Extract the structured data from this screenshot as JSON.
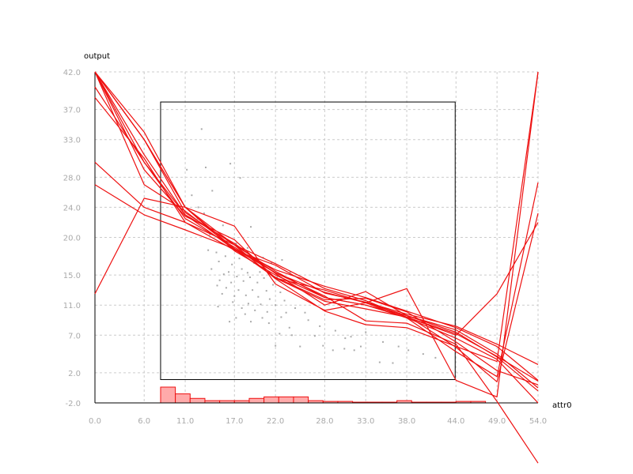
{
  "chart_data": {
    "type": "line",
    "xlabel": "attr0",
    "ylabel": "output",
    "xlim": [
      0,
      54
    ],
    "ylim": [
      -2,
      42
    ],
    "x_ticks": [
      "0.0",
      "6.0",
      "11.0",
      "17.0",
      "22.0",
      "28.0",
      "33.0",
      "38.0",
      "44.0",
      "49.0",
      "54.0"
    ],
    "y_ticks": [
      "-2.0",
      "2.0",
      "7.0",
      "11.0",
      "15.0",
      "20.0",
      "24.0",
      "28.0",
      "33.0",
      "37.0",
      "42.0"
    ],
    "grid": true,
    "colors": {
      "curves": "#ee1111",
      "histogram_fill": "#ffaaaa",
      "histogram_edge": "#ee1111",
      "points": "#aaaaaa",
      "box": "#000000",
      "grid": "#cccccc",
      "axis": "#000000"
    },
    "data_box": {
      "x": [
        8.0,
        43.9
      ],
      "y": [
        1.1,
        38.0
      ]
    },
    "histogram": {
      "bin_start": 8.0,
      "bin_width": 1.8,
      "heights": [
        2.1,
        1.2,
        0.6,
        0.3,
        0.3,
        0.3,
        0.6,
        0.8,
        0.8,
        0.8,
        0.3,
        0.2,
        0.2,
        0.1,
        0.1,
        0.1,
        0.3,
        0.1,
        0.1,
        0.1,
        0.2,
        0.2
      ]
    },
    "series": [
      {
        "x": [
          0,
          6,
          11,
          17,
          22,
          28,
          33,
          38,
          44,
          49,
          54
        ],
        "y": [
          12.5,
          25.2,
          24.0,
          18.2,
          15.0,
          12.0,
          11.0,
          9.6,
          7.4,
          4.1,
          -0.4
        ]
      },
      {
        "x": [
          0,
          6,
          11,
          17,
          22,
          28,
          33,
          38,
          44,
          49,
          54
        ],
        "y": [
          27.0,
          23.0,
          21.0,
          18.5,
          15.7,
          13.5,
          12.0,
          10.2,
          8.0,
          5.5,
          1.0
        ]
      },
      {
        "x": [
          0,
          6,
          11,
          17,
          22,
          28,
          33,
          38,
          44,
          49,
          54
        ],
        "y": [
          30.0,
          24.0,
          22.0,
          18.3,
          16.3,
          12.6,
          11.4,
          9.8,
          8.2,
          5.8,
          3.1
        ]
      },
      {
        "x": [
          0,
          6,
          11,
          17,
          22,
          28,
          33,
          38,
          44,
          49,
          54
        ],
        "y": [
          38.6,
          30.5,
          22.0,
          19.0,
          16.5,
          13.2,
          11.6,
          9.4,
          7.2,
          4.2,
          0.9
        ]
      },
      {
        "x": [
          0,
          6,
          11,
          17,
          22,
          28,
          33,
          38,
          44,
          49,
          54
        ],
        "y": [
          40.0,
          30.0,
          23.0,
          18.4,
          14.7,
          11.7,
          11.9,
          10.1,
          6.1,
          2.3,
          0.4
        ]
      },
      {
        "x": [
          0,
          6,
          11,
          17,
          22,
          28,
          33,
          38,
          44,
          49,
          54
        ],
        "y": [
          42.0,
          33.0,
          24.0,
          19.0,
          15.5,
          12.0,
          11.0,
          9.3,
          6.6,
          3.8,
          -2.0
        ]
      },
      {
        "x": [
          0,
          6,
          11,
          17,
          22,
          28,
          33,
          38,
          44,
          49,
          54
        ],
        "y": [
          42.0,
          30.0,
          22.5,
          18.7,
          15.3,
          12.7,
          11.3,
          9.6,
          7.7,
          4.5,
          0.0
        ]
      },
      {
        "x": [
          0,
          6,
          11,
          17,
          22,
          28,
          33,
          38,
          44,
          49,
          54
        ],
        "y": [
          42.0,
          29.0,
          22.8,
          19.7,
          14.6,
          13.0,
          11.3,
          9.3,
          4.8,
          1.5,
          27.3
        ]
      },
      {
        "x": [
          0,
          6,
          11,
          17,
          22,
          28,
          33,
          38,
          44,
          49,
          54
        ],
        "y": [
          42.0,
          31.0,
          23.0,
          19.2,
          15.2,
          11.0,
          12.8,
          9.6,
          5.4,
          0.8,
          23.2
        ]
      },
      {
        "x": [
          0,
          6,
          11,
          17,
          22,
          28,
          33,
          38,
          44,
          49,
          54
        ],
        "y": [
          42.0,
          33.0,
          23.3,
          19.0,
          14.5,
          10.2,
          8.4,
          8.0,
          5.5,
          3.5,
          42.0
        ]
      },
      {
        "x": [
          0,
          6,
          11,
          17,
          22,
          28,
          33,
          38,
          44,
          49,
          54
        ],
        "y": [
          42.0,
          33.0,
          24.0,
          21.5,
          13.8,
          10.3,
          11.3,
          13.2,
          1.0,
          -1.2,
          42.0
        ]
      },
      {
        "x": [
          0,
          6,
          11,
          17,
          22,
          28,
          33,
          38,
          44,
          49,
          54
        ],
        "y": [
          42.0,
          34.0,
          24.0,
          18.5,
          15.3,
          12.2,
          8.9,
          8.6,
          5.8,
          -1.8,
          -10.0
        ]
      },
      {
        "x": [
          0,
          6,
          11,
          17,
          22,
          28,
          33,
          38,
          44,
          49,
          54
        ],
        "y": [
          42.0,
          27.0,
          23.5,
          18.5,
          14.6,
          11.5,
          10.5,
          9.4,
          7.0,
          12.5,
          22.0
        ]
      }
    ],
    "points": [
      [
        13.0,
        34.4
      ],
      [
        11.2,
        29.0
      ],
      [
        13.5,
        29.3
      ],
      [
        16.5,
        29.8
      ],
      [
        17.7,
        27.9
      ],
      [
        14.3,
        26.2
      ],
      [
        11.8,
        25.6
      ],
      [
        12.6,
        24.0
      ],
      [
        13.3,
        23.2
      ],
      [
        12.5,
        22.5
      ],
      [
        15.6,
        21.6
      ],
      [
        19.0,
        21.4
      ],
      [
        14.0,
        20.4
      ],
      [
        16.1,
        19.5
      ],
      [
        17.2,
        19.2
      ],
      [
        18.6,
        18.6
      ],
      [
        14.8,
        18.0
      ],
      [
        15.9,
        17.5
      ],
      [
        17.6,
        17.2
      ],
      [
        20.5,
        17.3
      ],
      [
        22.8,
        17.0
      ],
      [
        15.1,
        16.8
      ],
      [
        16.7,
        16.4
      ],
      [
        19.4,
        16.6
      ],
      [
        21.5,
        16.6
      ],
      [
        14.2,
        15.8
      ],
      [
        16.3,
        15.4
      ],
      [
        17.9,
        15.8
      ],
      [
        18.6,
        15.3
      ],
      [
        20.1,
        15.4
      ],
      [
        23.8,
        15.4
      ],
      [
        15.7,
        15.1
      ],
      [
        17.3,
        14.8
      ],
      [
        18.9,
        14.7
      ],
      [
        20.6,
        14.6
      ],
      [
        22.2,
        14.7
      ],
      [
        15.2,
        14.3
      ],
      [
        16.6,
        14.0
      ],
      [
        18.1,
        14.2
      ],
      [
        19.8,
        14.0
      ],
      [
        21.7,
        13.7
      ],
      [
        14.9,
        13.6
      ],
      [
        16.0,
        13.3
      ],
      [
        17.5,
        13.0
      ],
      [
        19.2,
        13.0
      ],
      [
        20.9,
        12.9
      ],
      [
        22.6,
        12.7
      ],
      [
        15.5,
        12.5
      ],
      [
        17.0,
        12.2
      ],
      [
        18.4,
        12.3
      ],
      [
        19.9,
        12.1
      ],
      [
        21.3,
        11.8
      ],
      [
        23.1,
        11.6
      ],
      [
        16.8,
        11.4
      ],
      [
        18.7,
        11.2
      ],
      [
        20.2,
        11.1
      ],
      [
        22.0,
        11.0
      ],
      [
        24.4,
        10.6
      ],
      [
        17.9,
        10.6
      ],
      [
        19.5,
        10.3
      ],
      [
        21.0,
        10.1
      ],
      [
        23.3,
        10.0
      ],
      [
        25.6,
        10.0
      ],
      [
        18.3,
        9.8
      ],
      [
        20.4,
        9.3
      ],
      [
        22.7,
        9.4
      ],
      [
        26.0,
        9.0
      ],
      [
        19.0,
        8.8
      ],
      [
        21.2,
        8.6
      ],
      [
        23.7,
        8.0
      ],
      [
        27.4,
        8.2
      ],
      [
        29.3,
        7.6
      ],
      [
        22.5,
        7.2
      ],
      [
        24.0,
        7.0
      ],
      [
        26.8,
        6.9
      ],
      [
        30.5,
        6.6
      ],
      [
        31.2,
        6.8
      ],
      [
        33.0,
        7.4
      ],
      [
        22.0,
        5.6
      ],
      [
        25.0,
        5.5
      ],
      [
        27.8,
        5.6
      ],
      [
        29.0,
        5.0
      ],
      [
        30.4,
        5.2
      ],
      [
        31.6,
        5.0
      ],
      [
        32.4,
        5.5
      ],
      [
        35.1,
        6.1
      ],
      [
        37.0,
        5.5
      ],
      [
        34.7,
        3.4
      ],
      [
        36.3,
        3.3
      ],
      [
        38.2,
        5.0
      ],
      [
        40.0,
        4.5
      ],
      [
        41.5,
        4.0
      ],
      [
        16.4,
        8.8
      ],
      [
        15.0,
        10.8
      ],
      [
        17.2,
        9.3
      ],
      [
        13.8,
        18.3
      ]
    ]
  }
}
